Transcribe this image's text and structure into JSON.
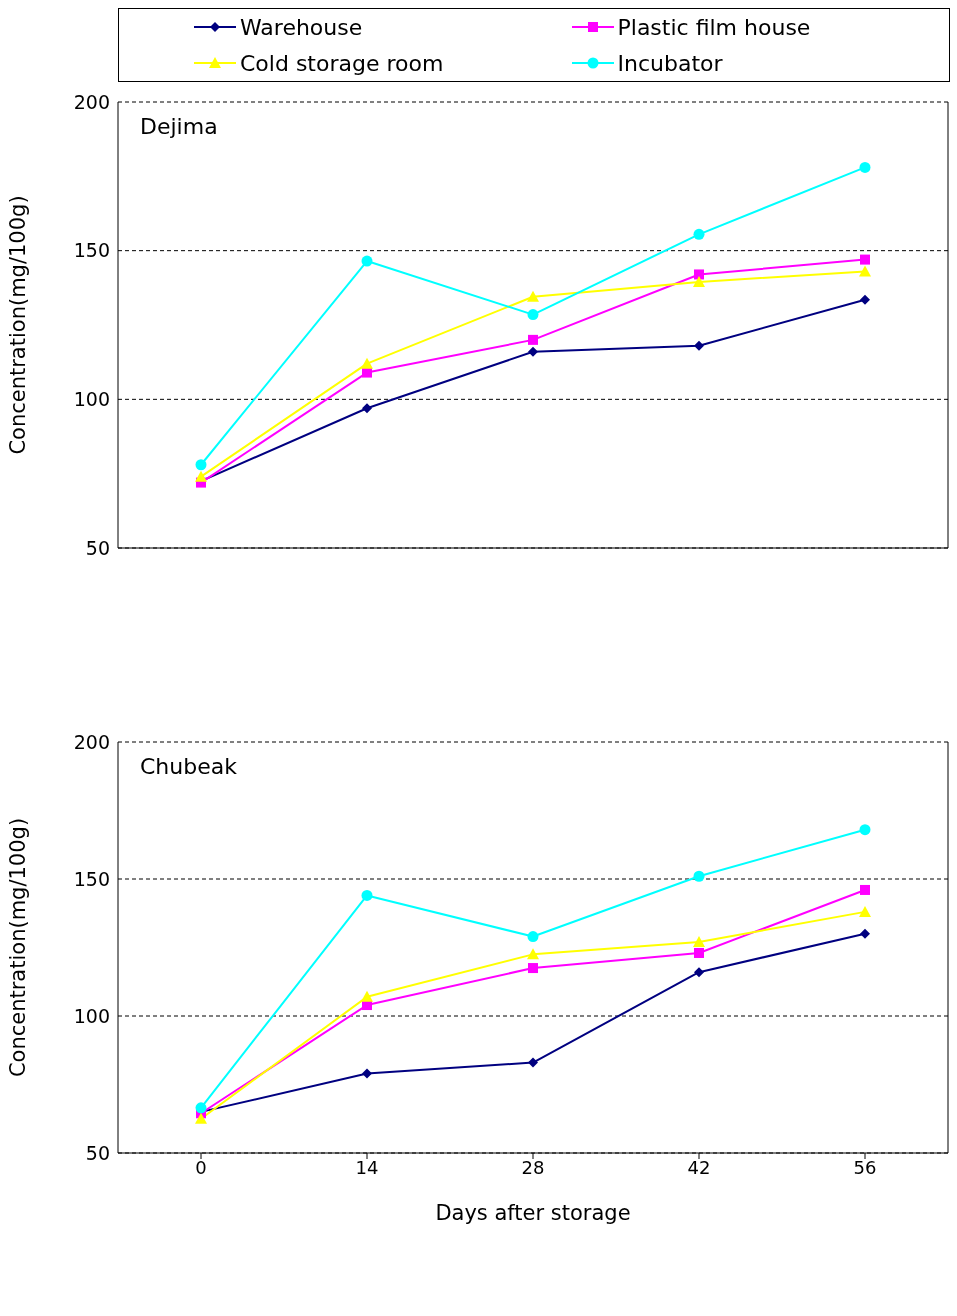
{
  "chart_data": [
    {
      "type": "line",
      "title": "Dejima",
      "ylabel": "Concentration(mg/100g)",
      "categories": [
        "0",
        "14",
        "28",
        "42",
        "56"
      ],
      "ylim": [
        50,
        200
      ],
      "yticks": [
        50,
        100,
        150,
        200
      ],
      "grid": "y",
      "legend": "top",
      "tick_labels": "y",
      "series": [
        {
          "name": "Warehouse",
          "color": "#000080",
          "marker": "diamond",
          "values": [
            72.5,
            97,
            116,
            118,
            133.5
          ]
        },
        {
          "name": "Plastic film house",
          "color": "#ff00ff",
          "marker": "square",
          "values": [
            72,
            109,
            120,
            142,
            147
          ]
        },
        {
          "name": "Cold storage room",
          "color": "#ffff00",
          "marker": "triangle",
          "values": [
            74,
            112,
            134.5,
            139.5,
            143
          ]
        },
        {
          "name": "Incubator",
          "color": "#00ffff",
          "marker": "circle",
          "values": [
            78,
            146.5,
            128.5,
            155.5,
            178
          ]
        }
      ]
    },
    {
      "type": "line",
      "title": "Chubeak",
      "xlabel": "Days after storage",
      "ylabel": "Concentration(mg/100g)",
      "categories": [
        "0",
        "14",
        "28",
        "42",
        "56"
      ],
      "ylim": [
        50,
        200
      ],
      "yticks": [
        50,
        100,
        150,
        200
      ],
      "grid": "y",
      "series": [
        {
          "color": "#000080",
          "marker": "diamond",
          "values": [
            65,
            79,
            83,
            116,
            130
          ]
        },
        {
          "color": "#ff00ff",
          "marker": "square",
          "values": [
            64.5,
            104,
            117.5,
            123,
            146
          ]
        },
        {
          "color": "#ffff00",
          "marker": "triangle",
          "values": [
            62.5,
            107,
            122.5,
            127,
            138
          ]
        },
        {
          "color": "#00ffff",
          "marker": "circle",
          "values": [
            66.5,
            144,
            129,
            151,
            168
          ]
        }
      ]
    }
  ]
}
